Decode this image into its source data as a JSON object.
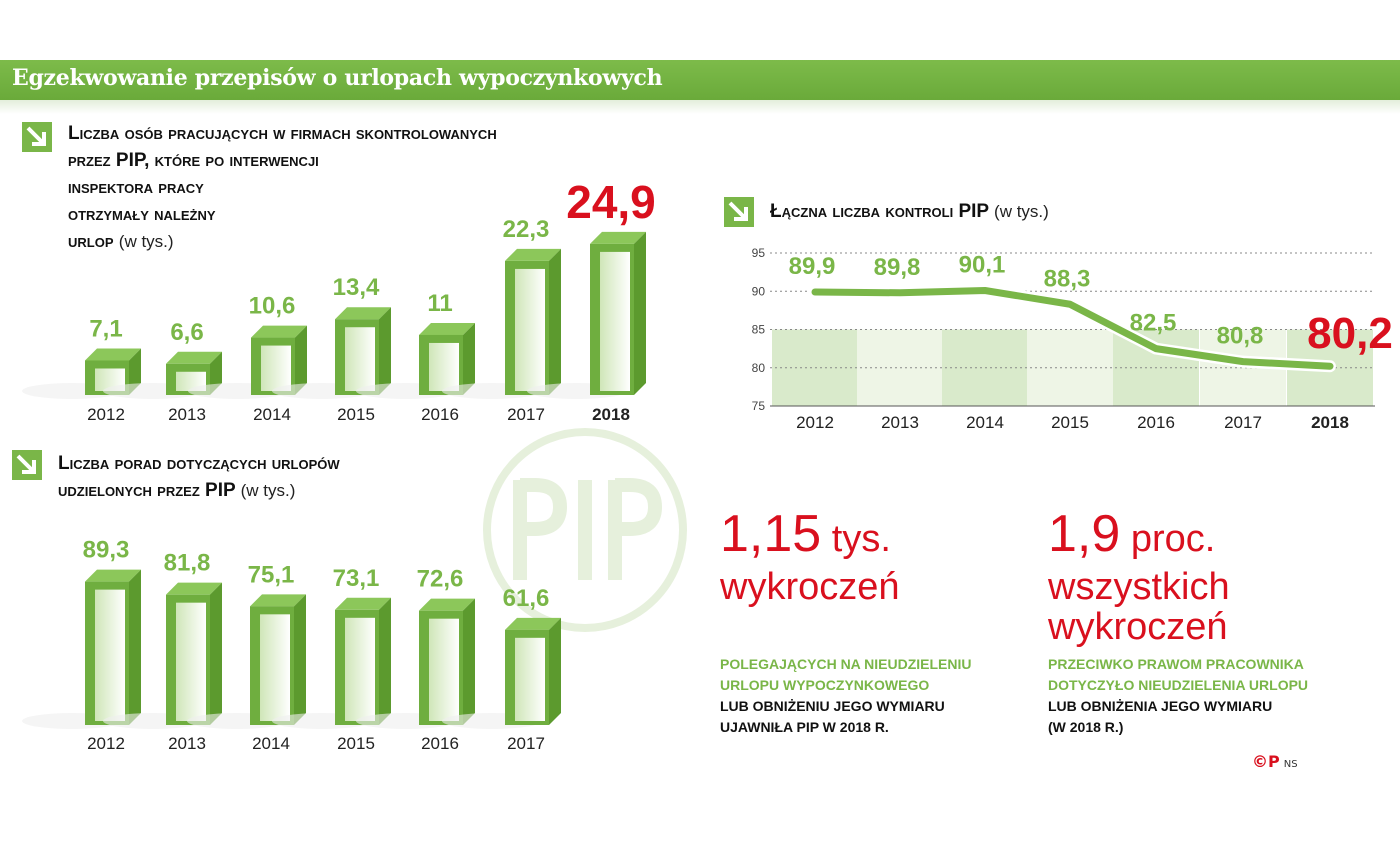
{
  "header": {
    "title": "Egzekwowanie przepisów o urlopach wypoczynkowych"
  },
  "colors": {
    "green": "#7ab648",
    "red": "#d9101e"
  },
  "watermark": "PIP",
  "chart_data": [
    {
      "type": "bar",
      "title_lines": [
        "Liczba osób pracujących w firmach skontrolowanych",
        "przez PIP, które po interwencji",
        "inspektora pracy",
        "otrzymały należny",
        "urlop"
      ],
      "unit": "(w tys.)",
      "categories": [
        "2012",
        "2013",
        "2014",
        "2015",
        "2016",
        "2017",
        "2018"
      ],
      "values": [
        7.1,
        6.6,
        10.6,
        13.4,
        11,
        22.3,
        24.9
      ],
      "labels": [
        "7,1",
        "6,6",
        "10,6",
        "13,4",
        "11",
        "22,3",
        "24,9"
      ],
      "highlight": "2018"
    },
    {
      "type": "line",
      "title": "Łączna liczba kontroli PIP",
      "unit": "(w tys.)",
      "categories": [
        "2012",
        "2013",
        "2014",
        "2015",
        "2016",
        "2017",
        "2018"
      ],
      "values": [
        89.9,
        89.8,
        90.1,
        88.3,
        82.5,
        80.8,
        80.2
      ],
      "labels": [
        "89,9",
        "89,8",
        "90,1",
        "88,3",
        "82,5",
        "80,8",
        "80,2"
      ],
      "ylim": [
        75,
        95
      ],
      "yticks": [
        "95",
        "90",
        "85",
        "80",
        "75"
      ],
      "grid": true,
      "highlight": "2018"
    },
    {
      "type": "bar",
      "title_lines": [
        "Liczba porad dotyczących urlopów",
        "udzielonych przez PIP"
      ],
      "unit": "(w tys.)",
      "categories": [
        "2012",
        "2013",
        "2014",
        "2015",
        "2016",
        "2017"
      ],
      "values": [
        89.3,
        81.8,
        75.1,
        73.1,
        72.6,
        61.6
      ],
      "labels": [
        "89,3",
        "81,8",
        "75,1",
        "73,1",
        "72,6",
        "61,6"
      ]
    }
  ],
  "stats": [
    {
      "number": "1,15",
      "unit": "tys.",
      "rest": [
        "wykroczeń"
      ],
      "green": [
        "polegających na nieudzieleniu",
        "urlopu wypoczynkowego"
      ],
      "black": [
        "lub obniżeniu jego wymiaru",
        "ujawniła PIP w 2018 r."
      ]
    },
    {
      "number": "1,9",
      "unit": "proc.",
      "rest": [
        "wszystkich",
        "wykroczeń"
      ],
      "green": [
        "przeciwko prawom pracownika",
        "dotyczyło nieudzielenia urlopu"
      ],
      "black": [
        "lub obniżenia jego wymiaru",
        "(w 2018 r.)"
      ]
    }
  ],
  "credit": {
    "mark": "©P",
    "author": "NS"
  }
}
